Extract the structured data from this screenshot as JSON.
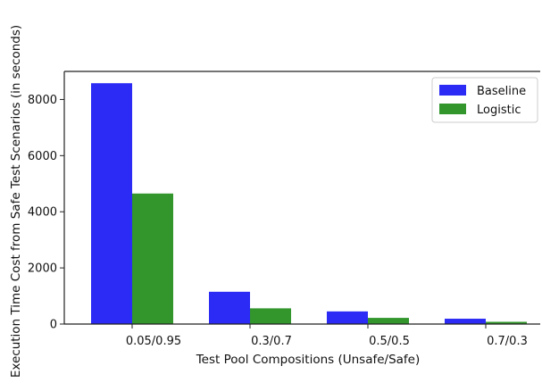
{
  "chart_data": {
    "type": "bar",
    "title": "",
    "xlabel": "Test Pool Compositions (Unsafe/Safe)",
    "ylabel": "Execution Time Cost from Safe Test Scenarios (in seconds)",
    "categories": [
      "0.05/0.95",
      "0.3/0.7",
      "0.5/0.5",
      "0.7/0.3"
    ],
    "series": [
      {
        "name": "Baseline",
        "color": "#2b2bf5",
        "values": [
          8580,
          1150,
          450,
          190
        ]
      },
      {
        "name": "Logistic",
        "color": "#32962d",
        "values": [
          4650,
          560,
          220,
          80
        ]
      }
    ],
    "ylim": [
      0,
      9000
    ],
    "yticks": [
      0,
      2000,
      4000,
      6000,
      8000
    ],
    "grid": false,
    "legend_position": "top-right"
  }
}
